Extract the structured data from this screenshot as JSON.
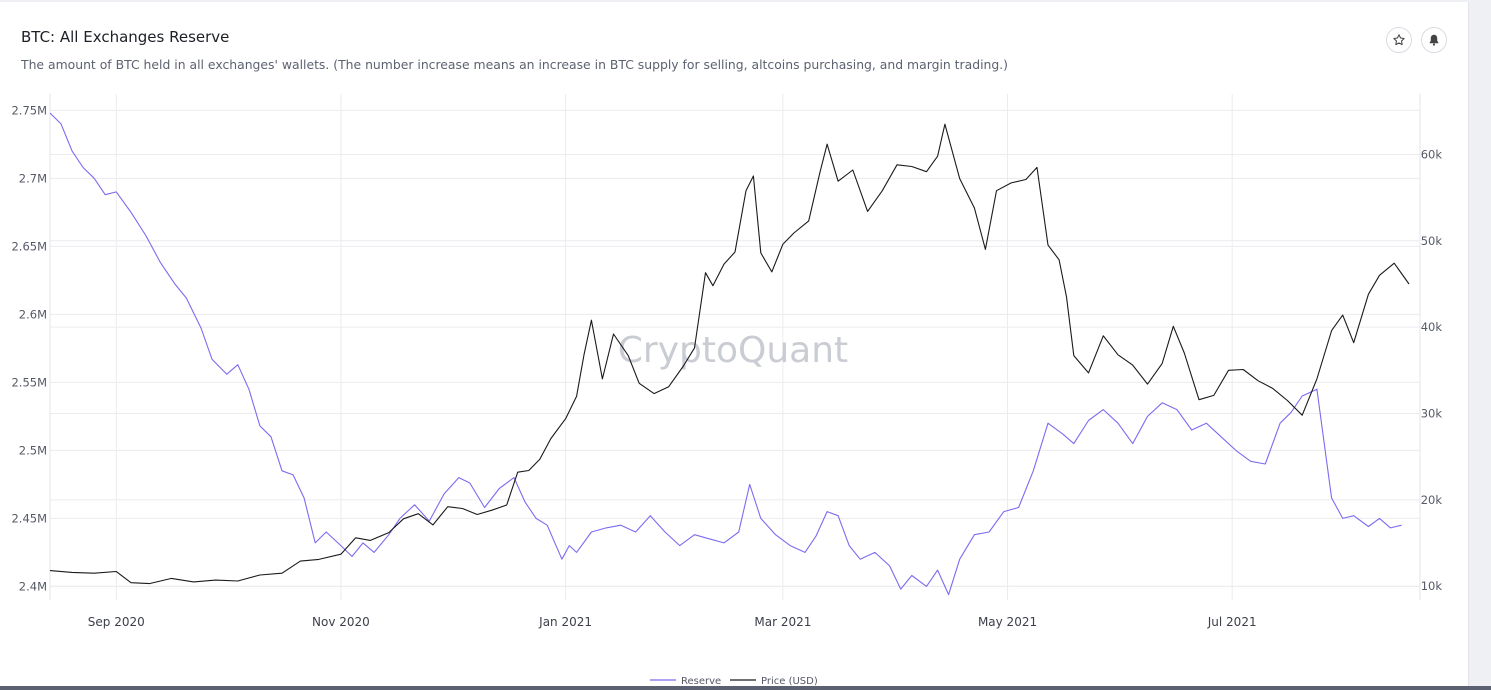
{
  "header": {
    "title": "BTC: All Exchanges Reserve",
    "subtitle": "The amount of BTC held in all exchanges' wallets. (The number increase means an increase in BTC supply for selling, altcoins purchasing, and margin trading.)",
    "buttons": [
      {
        "name": "favorite-star-button",
        "icon": "star-icon"
      },
      {
        "name": "alert-bell-button",
        "icon": "bell-icon"
      }
    ]
  },
  "watermark": "CryptoQuant",
  "colors": {
    "reserve": "#7b6cf0",
    "price": "#1a1a1a",
    "grid": "#ececf0"
  },
  "chart_data": {
    "type": "line",
    "title": "BTC: All Exchanges Reserve",
    "x_tick_labels": [
      "Sep 2020",
      "Nov 2020",
      "Jan 2021",
      "Mar 2021",
      "May 2021",
      "Jul 2021"
    ],
    "x_tick_dates": [
      "2020-09-01",
      "2020-11-01",
      "2021-01-01",
      "2021-03-01",
      "2021-05-01",
      "2021-07-01"
    ],
    "xlim": [
      "2020-08-14",
      "2021-08-21"
    ],
    "y_left": {
      "label": "",
      "ticks": [
        "2.4M",
        "2.45M",
        "2.5M",
        "2.55M",
        "2.6M",
        "2.65M",
        "2.7M",
        "2.75M"
      ],
      "lim": [
        2390000,
        2762000
      ]
    },
    "y_right": {
      "label": "",
      "ticks": [
        "10k",
        "20k",
        "30k",
        "40k",
        "50k",
        "60k"
      ],
      "lim": [
        8400,
        67000
      ]
    },
    "legend": [
      "Reserve",
      "Price (USD)"
    ],
    "legend_position": "bottom-center",
    "grid": true,
    "series": [
      {
        "name": "Reserve",
        "axis": "left",
        "x": [
          "2020-08-14",
          "2020-08-17",
          "2020-08-20",
          "2020-08-23",
          "2020-08-26",
          "2020-08-29",
          "2020-09-01",
          "2020-09-05",
          "2020-09-09",
          "2020-09-13",
          "2020-09-17",
          "2020-09-20",
          "2020-09-24",
          "2020-09-27",
          "2020-10-01",
          "2020-10-04",
          "2020-10-07",
          "2020-10-10",
          "2020-10-13",
          "2020-10-16",
          "2020-10-19",
          "2020-10-22",
          "2020-10-25",
          "2020-10-28",
          "2020-11-01",
          "2020-11-04",
          "2020-11-07",
          "2020-11-10",
          "2020-11-14",
          "2020-11-17",
          "2020-11-21",
          "2020-11-25",
          "2020-11-29",
          "2020-12-03",
          "2020-12-06",
          "2020-12-10",
          "2020-12-14",
          "2020-12-18",
          "2020-12-21",
          "2020-12-24",
          "2020-12-27",
          "2020-12-31",
          "2021-01-02",
          "2021-01-04",
          "2021-01-08",
          "2021-01-12",
          "2021-01-16",
          "2021-01-20",
          "2021-01-24",
          "2021-01-28",
          "2021-02-01",
          "2021-02-05",
          "2021-02-09",
          "2021-02-13",
          "2021-02-17",
          "2021-02-20",
          "2021-02-23",
          "2021-02-27",
          "2021-03-03",
          "2021-03-07",
          "2021-03-10",
          "2021-03-13",
          "2021-03-16",
          "2021-03-19",
          "2021-03-22",
          "2021-03-26",
          "2021-03-30",
          "2021-04-02",
          "2021-04-05",
          "2021-04-09",
          "2021-04-12",
          "2021-04-15",
          "2021-04-18",
          "2021-04-22",
          "2021-04-26",
          "2021-04-30",
          "2021-05-04",
          "2021-05-08",
          "2021-05-12",
          "2021-05-16",
          "2021-05-19",
          "2021-05-23",
          "2021-05-27",
          "2021-05-31",
          "2021-06-04",
          "2021-06-08",
          "2021-06-12",
          "2021-06-16",
          "2021-06-20",
          "2021-06-24",
          "2021-06-28",
          "2021-07-02",
          "2021-07-06",
          "2021-07-10",
          "2021-07-14",
          "2021-07-17",
          "2021-07-20",
          "2021-07-24",
          "2021-07-28",
          "2021-07-31",
          "2021-08-03",
          "2021-08-07",
          "2021-08-10",
          "2021-08-13",
          "2021-08-16"
        ],
        "values": [
          2748000,
          2740000,
          2720000,
          2708000,
          2700000,
          2688000,
          2690000,
          2675000,
          2658000,
          2638000,
          2622000,
          2612000,
          2590000,
          2567000,
          2556000,
          2563000,
          2545000,
          2518000,
          2510000,
          2485000,
          2482000,
          2465000,
          2432000,
          2440000,
          2430000,
          2422000,
          2432000,
          2425000,
          2438000,
          2450000,
          2460000,
          2448000,
          2468000,
          2480000,
          2476000,
          2458000,
          2472000,
          2480000,
          2462000,
          2450000,
          2445000,
          2420000,
          2430000,
          2425000,
          2440000,
          2443000,
          2445000,
          2440000,
          2452000,
          2440000,
          2430000,
          2438000,
          2435000,
          2432000,
          2440000,
          2475000,
          2450000,
          2438000,
          2430000,
          2425000,
          2437000,
          2455000,
          2452000,
          2430000,
          2420000,
          2425000,
          2415000,
          2398000,
          2408000,
          2400000,
          2412000,
          2394000,
          2420000,
          2438000,
          2440000,
          2455000,
          2458000,
          2485000,
          2520000,
          2512000,
          2505000,
          2522000,
          2530000,
          2520000,
          2505000,
          2525000,
          2535000,
          2530000,
          2515000,
          2520000,
          2510000,
          2500000,
          2492000,
          2490000,
          2520000,
          2528000,
          2540000,
          2545000,
          2465000,
          2450000,
          2452000,
          2444000,
          2450000,
          2443000,
          2445000
        ]
      },
      {
        "name": "Price (USD)",
        "axis": "right",
        "x": [
          "2020-08-14",
          "2020-08-20",
          "2020-08-26",
          "2020-09-01",
          "2020-09-05",
          "2020-09-10",
          "2020-09-16",
          "2020-09-22",
          "2020-09-28",
          "2020-10-04",
          "2020-10-10",
          "2020-10-16",
          "2020-10-21",
          "2020-10-26",
          "2020-11-01",
          "2020-11-05",
          "2020-11-09",
          "2020-11-14",
          "2020-11-18",
          "2020-11-22",
          "2020-11-26",
          "2020-11-30",
          "2020-12-04",
          "2020-12-08",
          "2020-12-12",
          "2020-12-16",
          "2020-12-19",
          "2020-12-22",
          "2020-12-25",
          "2020-12-28",
          "2021-01-01",
          "2021-01-04",
          "2021-01-06",
          "2021-01-08",
          "2021-01-11",
          "2021-01-14",
          "2021-01-18",
          "2021-01-21",
          "2021-01-25",
          "2021-01-29",
          "2021-02-02",
          "2021-02-05",
          "2021-02-08",
          "2021-02-10",
          "2021-02-13",
          "2021-02-16",
          "2021-02-19",
          "2021-02-21",
          "2021-02-23",
          "2021-02-26",
          "2021-03-01",
          "2021-03-04",
          "2021-03-08",
          "2021-03-11",
          "2021-03-13",
          "2021-03-16",
          "2021-03-20",
          "2021-03-24",
          "2021-03-28",
          "2021-04-01",
          "2021-04-05",
          "2021-04-09",
          "2021-04-12",
          "2021-04-14",
          "2021-04-18",
          "2021-04-22",
          "2021-04-25",
          "2021-04-28",
          "2021-05-02",
          "2021-05-06",
          "2021-05-09",
          "2021-05-12",
          "2021-05-15",
          "2021-05-17",
          "2021-05-19",
          "2021-05-23",
          "2021-05-27",
          "2021-05-31",
          "2021-06-04",
          "2021-06-08",
          "2021-06-12",
          "2021-06-15",
          "2021-06-18",
          "2021-06-22",
          "2021-06-26",
          "2021-06-30",
          "2021-07-04",
          "2021-07-08",
          "2021-07-12",
          "2021-07-16",
          "2021-07-20",
          "2021-07-24",
          "2021-07-28",
          "2021-07-31",
          "2021-08-03",
          "2021-08-07",
          "2021-08-10",
          "2021-08-14",
          "2021-08-18"
        ],
        "values": [
          11800,
          11600,
          11500,
          11700,
          10400,
          10300,
          10900,
          10500,
          10700,
          10600,
          11300,
          11500,
          12900,
          13100,
          13700,
          15600,
          15300,
          16200,
          17800,
          18400,
          17100,
          19200,
          19000,
          18300,
          18800,
          19400,
          23200,
          23400,
          24700,
          27100,
          29400,
          32000,
          36800,
          40800,
          34000,
          39200,
          36700,
          33500,
          32300,
          33100,
          35500,
          37600,
          46300,
          44800,
          47300,
          48700,
          55800,
          57500,
          48600,
          46400,
          49600,
          50900,
          52300,
          57800,
          61200,
          56900,
          58200,
          53400,
          55800,
          58800,
          58600,
          58000,
          59800,
          63500,
          57200,
          53800,
          49000,
          55800,
          56700,
          57100,
          58500,
          49500,
          47800,
          43500,
          36700,
          34700,
          39000,
          36800,
          35600,
          33400,
          35800,
          40100,
          37000,
          31600,
          32100,
          35000,
          35100,
          33800,
          32900,
          31500,
          29800,
          34000,
          39600,
          41400,
          38200,
          43800,
          46000,
          47400,
          45000
        ]
      }
    ]
  }
}
